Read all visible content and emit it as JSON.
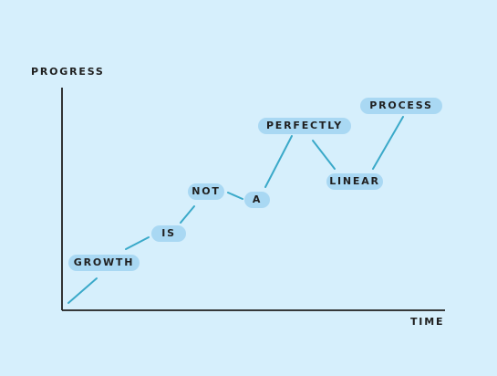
{
  "axes": {
    "y_label": "PROGRESS",
    "x_label": "TIME"
  },
  "words": [
    {
      "text": "GROWTH"
    },
    {
      "text": "IS"
    },
    {
      "text": "NOT"
    },
    {
      "text": "A"
    },
    {
      "text": "PERFECTLY"
    },
    {
      "text": "LINEAR"
    },
    {
      "text": "PROCESS"
    }
  ],
  "colors": {
    "background": "#d6effc",
    "pill": "#a9d8f3",
    "line": "#3aa9c9",
    "axis": "#1f1f1f",
    "text": "#1f1f1f"
  }
}
